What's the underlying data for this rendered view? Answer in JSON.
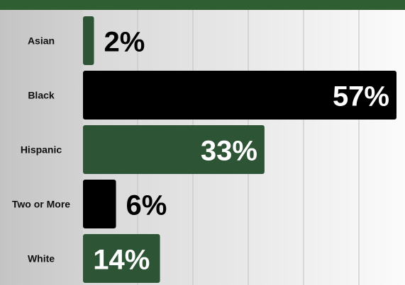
{
  "chart_data": {
    "type": "bar",
    "orientation": "horizontal",
    "categories": [
      "Asian",
      "Black",
      "Hispanic",
      "Two or More",
      "White"
    ],
    "values": [
      2,
      57,
      33,
      6,
      14
    ],
    "value_labels": [
      "2%",
      "57%",
      "33%",
      "6%",
      "14%"
    ],
    "xlim": [
      0,
      57
    ],
    "grid": true,
    "legend": "none",
    "title": "",
    "xlabel": "",
    "ylabel": ""
  },
  "colors": {
    "green": "#2d5535",
    "black": "#000000",
    "header": "#2f5e33",
    "label_text": "#111111",
    "value_text_dark": "#000000",
    "value_text_light": "#ffffff"
  }
}
